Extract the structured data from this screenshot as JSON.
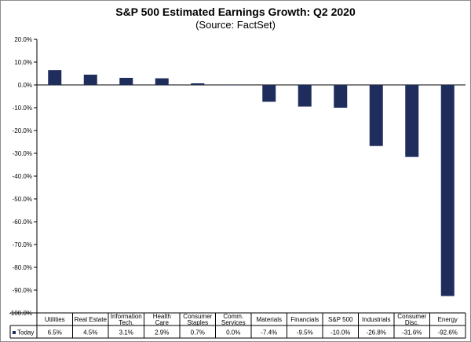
{
  "chart_data": {
    "type": "bar",
    "title": "S&P 500 Estimated Earnings Growth: Q2 2020",
    "subtitle": "(Source: FactSet)",
    "categories": [
      [
        "Utilities"
      ],
      [
        "Real Estate"
      ],
      [
        "Information",
        "Tech."
      ],
      [
        "Health",
        "Care"
      ],
      [
        "Consumer",
        "Staples"
      ],
      [
        "Comm.",
        "Services"
      ],
      [
        "Materials"
      ],
      [
        "Financials"
      ],
      [
        "S&P 500"
      ],
      [
        "Industrials"
      ],
      [
        "Consumer",
        "Disc."
      ],
      [
        "Energy"
      ]
    ],
    "series": [
      {
        "name": "Today",
        "color": "#1f2d5c",
        "values": [
          6.5,
          4.5,
          3.1,
          2.9,
          0.7,
          0.0,
          -7.4,
          -9.5,
          -10.0,
          -26.8,
          -31.6,
          -92.6
        ],
        "labels": [
          "6.5%",
          "4.5%",
          "3.1%",
          "2.9%",
          "0.7%",
          "0.0%",
          "-7.4%",
          "-9.5%",
          "-10.0%",
          "-26.8%",
          "-31.6%",
          "-92.6%"
        ]
      }
    ],
    "ylim": [
      -100,
      20
    ],
    "yticks": [
      20,
      10,
      0,
      -10,
      -20,
      -30,
      -40,
      -50,
      -60,
      -70,
      -80,
      -90,
      -100
    ],
    "ytick_labels": [
      "20.0%",
      "10.0%",
      "0.0%",
      "-10.0%",
      "-20.0%",
      "-30.0%",
      "-40.0%",
      "-50.0%",
      "-60.0%",
      "-70.0%",
      "-80.0%",
      "-90.0%",
      "-100.0%"
    ],
    "grid": false,
    "legend": "data-table-left"
  }
}
